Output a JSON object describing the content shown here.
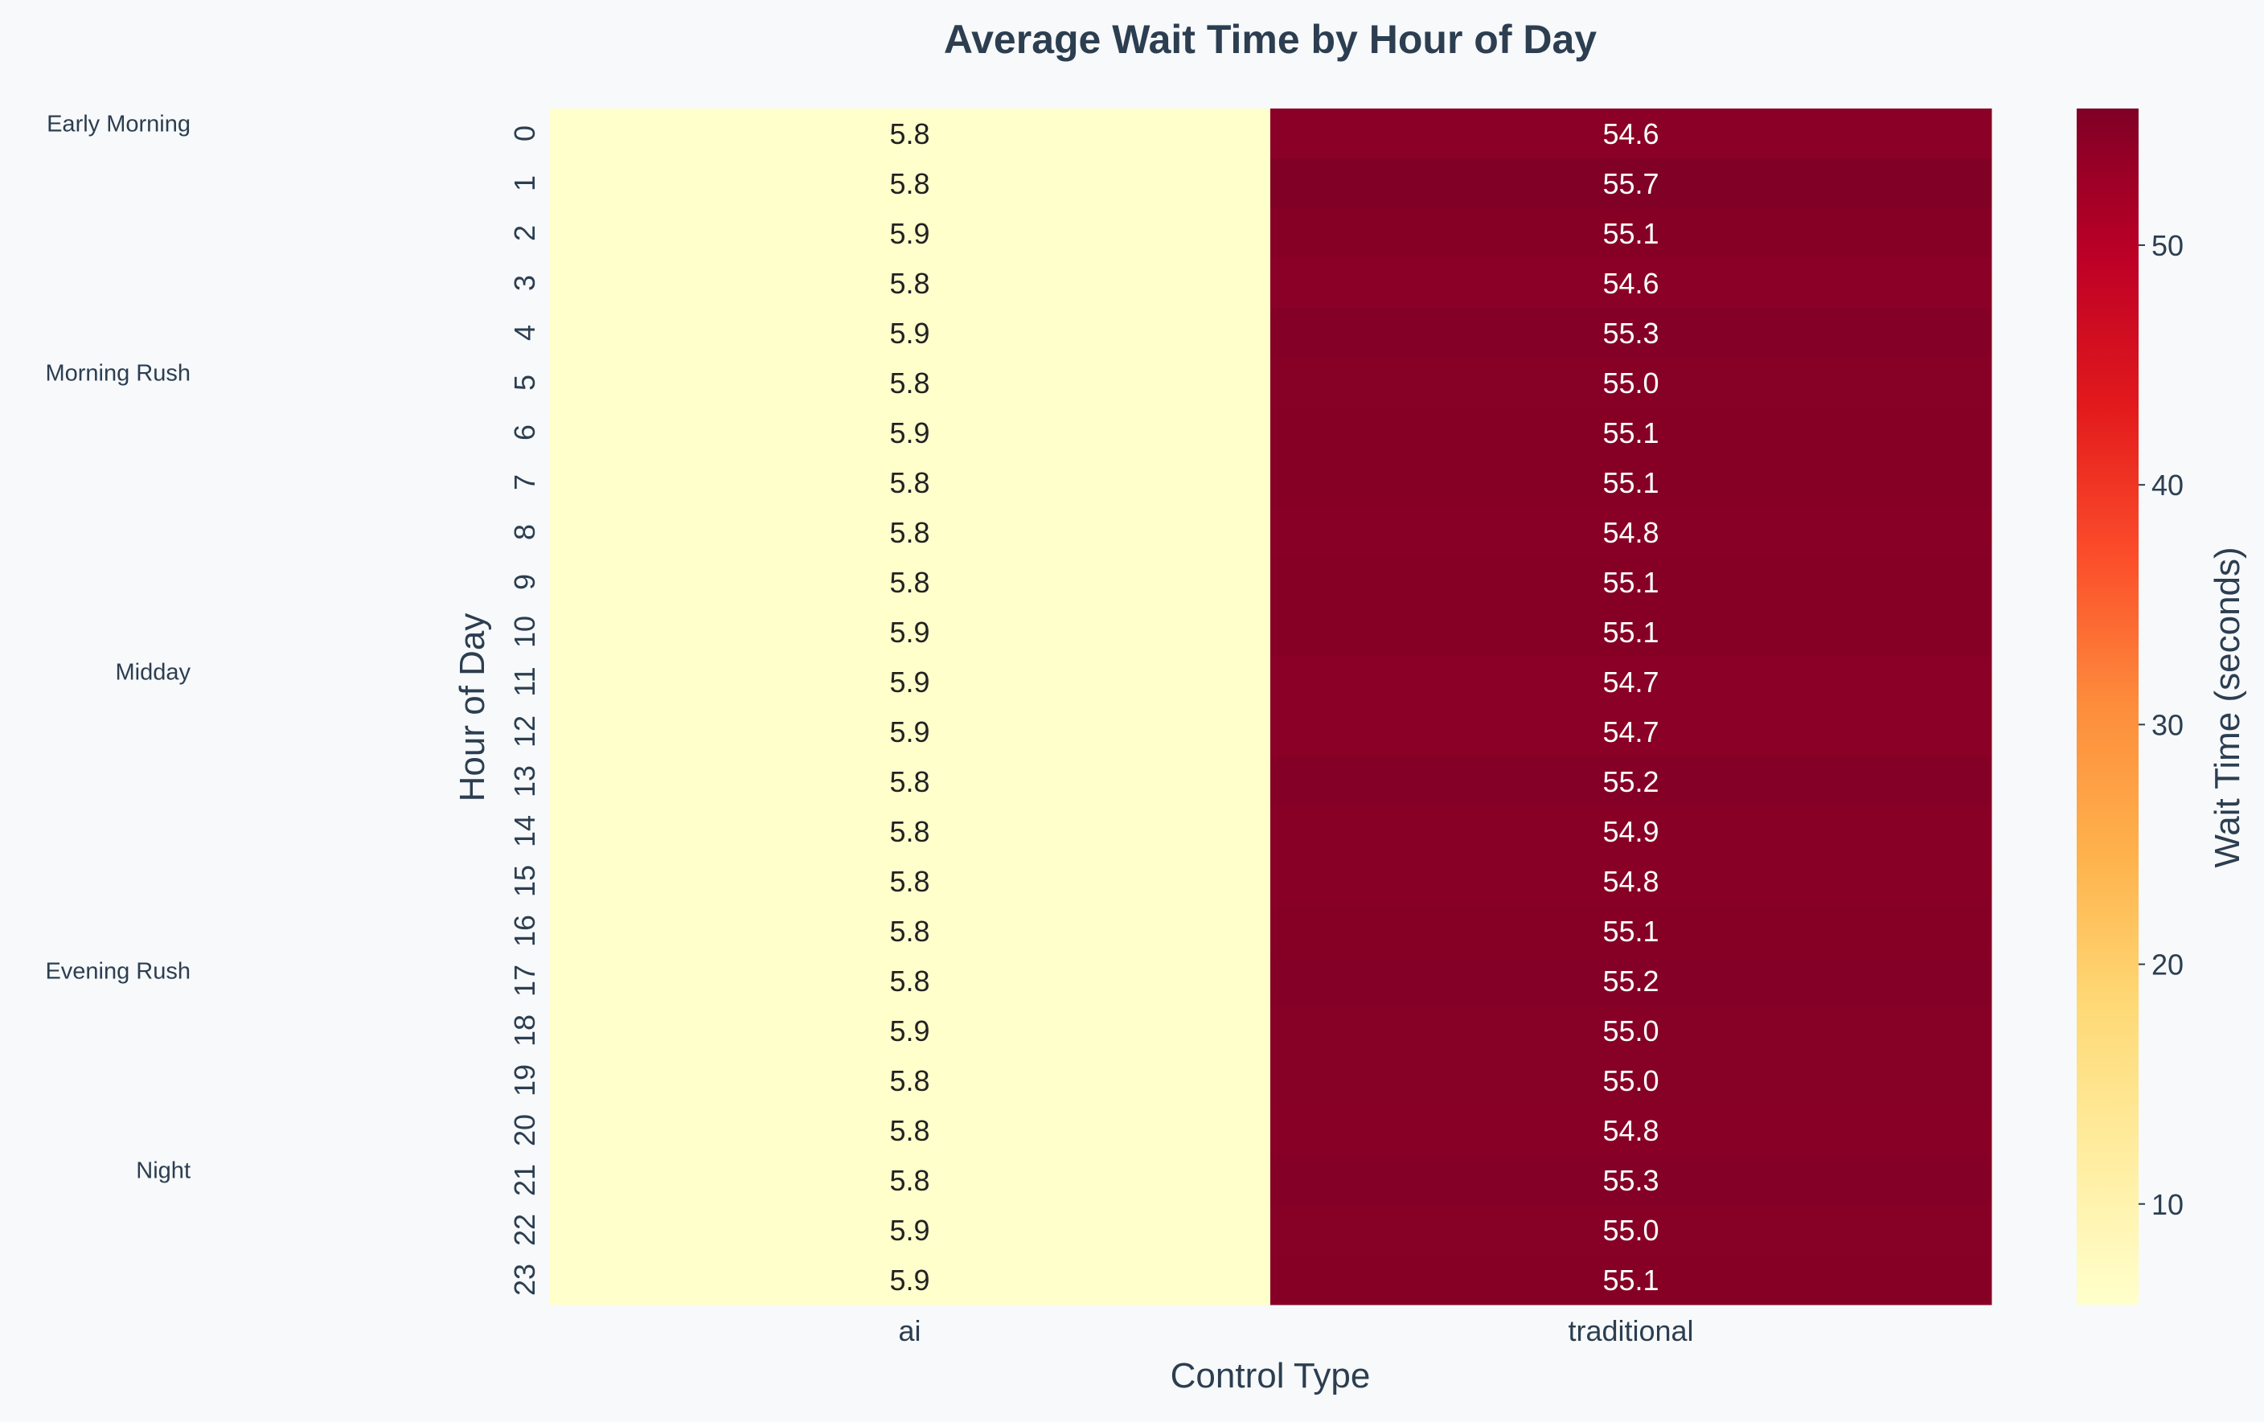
{
  "chart_data": {
    "type": "heatmap",
    "title": "Average Wait Time by Hour of Day",
    "xlabel": "Control Type",
    "ylabel": "Hour of Day",
    "columns": [
      "ai",
      "traditional"
    ],
    "rows": [
      "0",
      "1",
      "2",
      "3",
      "4",
      "5",
      "6",
      "7",
      "8",
      "9",
      "10",
      "11",
      "12",
      "13",
      "14",
      "15",
      "16",
      "17",
      "18",
      "19",
      "20",
      "21",
      "22",
      "23"
    ],
    "values": [
      [
        5.8,
        54.6
      ],
      [
        5.8,
        55.7
      ],
      [
        5.9,
        55.1
      ],
      [
        5.8,
        54.6
      ],
      [
        5.9,
        55.3
      ],
      [
        5.8,
        55.0
      ],
      [
        5.9,
        55.1
      ],
      [
        5.8,
        55.1
      ],
      [
        5.8,
        54.8
      ],
      [
        5.8,
        55.1
      ],
      [
        5.9,
        55.1
      ],
      [
        5.9,
        54.7
      ],
      [
        5.9,
        54.7
      ],
      [
        5.8,
        55.2
      ],
      [
        5.8,
        54.9
      ],
      [
        5.8,
        54.8
      ],
      [
        5.8,
        55.1
      ],
      [
        5.8,
        55.2
      ],
      [
        5.9,
        55.0
      ],
      [
        5.8,
        55.0
      ],
      [
        5.8,
        54.8
      ],
      [
        5.8,
        55.3
      ],
      [
        5.9,
        55.0
      ],
      [
        5.9,
        55.1
      ]
    ],
    "period_labels": [
      {
        "label": "Early Morning",
        "hour": 0.3
      },
      {
        "label": "Morning Rush",
        "hour": 5.3
      },
      {
        "label": "Midday",
        "hour": 11.3
      },
      {
        "label": "Evening Rush",
        "hour": 17.3
      },
      {
        "label": "Night",
        "hour": 21.3
      }
    ],
    "colorbar": {
      "label": "Wait Time (seconds)",
      "min": 5.8,
      "max": 55.7,
      "ticks": [
        10,
        20,
        30,
        40,
        50
      ],
      "colormap": "YlOrRd"
    },
    "grid": false,
    "legend": "none"
  }
}
